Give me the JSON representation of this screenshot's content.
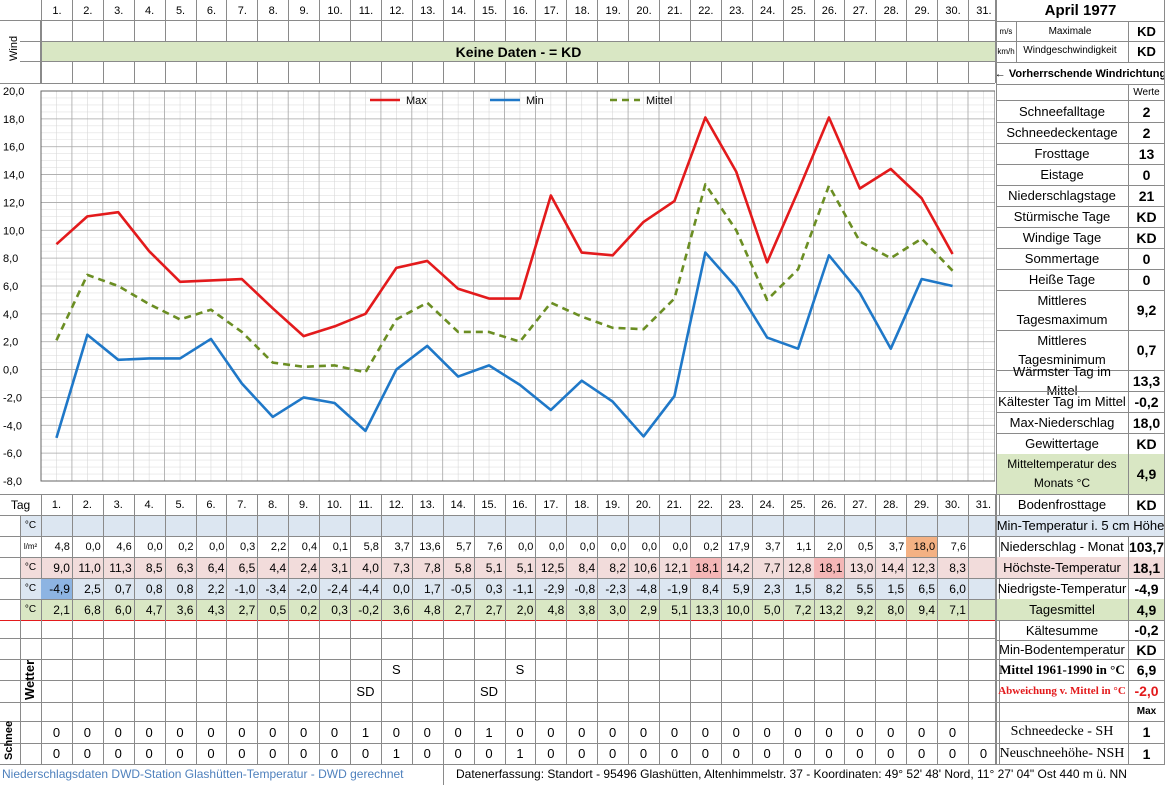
{
  "header": {
    "day_numbers": [
      "1.",
      "2.",
      "3.",
      "4.",
      "5.",
      "6.",
      "7.",
      "8.",
      "9.",
      "10.",
      "11.",
      "12.",
      "13.",
      "14.",
      "15.",
      "16.",
      "17.",
      "18.",
      "19.",
      "20.",
      "21.",
      "22.",
      "23.",
      "24.",
      "25.",
      "26.",
      "27.",
      "28.",
      "29.",
      "30.",
      "31."
    ],
    "month_title": "April 1977",
    "wind_label": "Wind",
    "wind_unit_ms": "m/s",
    "wind_unit_kmh": "km/h",
    "max_wind_label_1": "Maximale",
    "max_wind_label_2": "Windgeschwindigkeit",
    "max_wind_ms": "KD",
    "max_wind_kmh": "KD",
    "no_data_banner": "Keine Daten -  = KD",
    "prevailing_wind": "← Vorherrschende Windrichtung"
  },
  "chart_data": {
    "type": "line",
    "x": [
      1,
      2,
      3,
      4,
      5,
      6,
      7,
      8,
      9,
      10,
      11,
      12,
      13,
      14,
      15,
      16,
      17,
      18,
      19,
      20,
      21,
      22,
      23,
      24,
      25,
      26,
      27,
      28,
      29,
      30
    ],
    "series": [
      {
        "name": "Max",
        "color": "#e31a1c",
        "style": "solid",
        "values": [
          9.0,
          11.0,
          11.3,
          8.5,
          6.3,
          6.4,
          6.5,
          4.4,
          2.4,
          3.1,
          4.0,
          7.3,
          7.8,
          5.8,
          5.1,
          5.1,
          12.5,
          8.4,
          8.2,
          10.6,
          12.1,
          18.1,
          14.2,
          7.7,
          12.8,
          18.1,
          13.0,
          14.4,
          12.3,
          8.3
        ]
      },
      {
        "name": "Min",
        "color": "#1f78c8",
        "style": "solid",
        "values": [
          -4.9,
          2.5,
          0.7,
          0.8,
          0.8,
          2.2,
          -1.0,
          -3.4,
          -2.0,
          -2.4,
          -4.4,
          0.0,
          1.7,
          -0.5,
          0.3,
          -1.1,
          -2.9,
          -0.8,
          -2.3,
          -4.8,
          -1.9,
          8.4,
          5.9,
          2.3,
          1.5,
          8.2,
          5.5,
          1.5,
          6.5,
          6.0
        ]
      },
      {
        "name": "Mittel",
        "color": "#6b8e23",
        "style": "dashed",
        "values": [
          2.1,
          6.8,
          6.0,
          4.7,
          3.6,
          4.3,
          2.7,
          0.5,
          0.2,
          0.3,
          -0.2,
          3.6,
          4.8,
          2.7,
          2.7,
          2.0,
          4.8,
          3.8,
          3.0,
          2.9,
          5.1,
          13.3,
          10.0,
          5.0,
          7.2,
          13.2,
          9.2,
          8.0,
          9.4,
          7.1
        ]
      }
    ],
    "y_ticks": [
      "20,0",
      "18,0",
      "16,0",
      "14,0",
      "12,0",
      "10,0",
      "8,0",
      "6,0",
      "4,0",
      "2,0",
      "0,0",
      "-2,0",
      "-4,0",
      "-6,0",
      "-8,0"
    ],
    "ylim": [
      -8,
      20
    ],
    "legend_placement": "top-center",
    "grid": true
  },
  "table": {
    "tag_label": "Tag",
    "units": {
      "boden": "°C",
      "nieder": "l/m²",
      "max": "°C",
      "min": "°C",
      "mittel": "°C"
    },
    "nieder": [
      "4,8",
      "0,0",
      "4,6",
      "0,0",
      "0,2",
      "0,0",
      "0,3",
      "2,2",
      "0,4",
      "0,1",
      "5,8",
      "3,7",
      "13,6",
      "5,7",
      "7,6",
      "0,0",
      "0,0",
      "0,0",
      "0,0",
      "0,0",
      "0,0",
      "0,2",
      "17,9",
      "3,7",
      "1,1",
      "2,0",
      "0,5",
      "3,7",
      "18,0",
      "7,6"
    ],
    "max": [
      "9,0",
      "11,0",
      "11,3",
      "8,5",
      "6,3",
      "6,4",
      "6,5",
      "4,4",
      "2,4",
      "3,1",
      "4,0",
      "7,3",
      "7,8",
      "5,8",
      "5,1",
      "5,1",
      "12,5",
      "8,4",
      "8,2",
      "10,6",
      "12,1",
      "18,1",
      "14,2",
      "7,7",
      "12,8",
      "18,1",
      "13,0",
      "14,4",
      "12,3",
      "8,3"
    ],
    "min": [
      "-4,9",
      "2,5",
      "0,7",
      "0,8",
      "0,8",
      "2,2",
      "-1,0",
      "-3,4",
      "-2,0",
      "-2,4",
      "-4,4",
      "0,0",
      "1,7",
      "-0,5",
      "0,3",
      "-1,1",
      "-2,9",
      "-0,8",
      "-2,3",
      "-4,8",
      "-1,9",
      "8,4",
      "5,9",
      "2,3",
      "1,5",
      "8,2",
      "5,5",
      "1,5",
      "6,5",
      "6,0"
    ],
    "mittel": [
      "2,1",
      "6,8",
      "6,0",
      "4,7",
      "3,6",
      "4,3",
      "2,7",
      "0,5",
      "0,2",
      "0,3",
      "-0,2",
      "3,6",
      "4,8",
      "2,7",
      "2,7",
      "2,0",
      "4,8",
      "3,8",
      "3,0",
      "2,9",
      "5,1",
      "13,3",
      "10,0",
      "5,0",
      "7,2",
      "13,2",
      "9,2",
      "8,0",
      "9,4",
      "7,1"
    ],
    "wetter_label": "Wetter",
    "wetter_row1": [
      "",
      "",
      "",
      "",
      "",
      "",
      "",
      "",
      "",
      "",
      "",
      "S",
      "",
      "",
      "",
      "S",
      "",
      "",
      "",
      "",
      "",
      "",
      "",
      "",
      "",
      "",
      "",
      "",
      "",
      ""
    ],
    "wetter_row2": [
      "",
      "",
      "",
      "",
      "",
      "",
      "",
      "",
      "",
      "",
      "SD",
      "",
      "",
      "",
      "SD",
      "",
      "",
      "",
      "",
      "",
      "",
      "",
      "",
      "",
      "",
      "",
      "",
      "",
      "",
      ""
    ],
    "schnee_label": "Schnee",
    "schnee_sh": [
      "0",
      "0",
      "0",
      "0",
      "0",
      "0",
      "0",
      "0",
      "0",
      "0",
      "1",
      "0",
      "0",
      "0",
      "1",
      "0",
      "0",
      "0",
      "0",
      "0",
      "0",
      "0",
      "0",
      "0",
      "0",
      "0",
      "0",
      "0",
      "0",
      "0"
    ],
    "schnee_nsh": [
      "0",
      "0",
      "0",
      "0",
      "0",
      "0",
      "0",
      "0",
      "0",
      "0",
      "0",
      "1",
      "0",
      "0",
      "0",
      "1",
      "0",
      "0",
      "0",
      "0",
      "0",
      "0",
      "0",
      "0",
      "0",
      "0",
      "0",
      "0",
      "0",
      "0"
    ],
    "schnee_nsh_31": "0"
  },
  "stats": {
    "werte_label": "Werte",
    "max_label": "Max",
    "upper": [
      {
        "label": "Schneefalltage",
        "value": "2"
      },
      {
        "label": "Schneedeckentage",
        "value": "2"
      },
      {
        "label": "Frosttage",
        "value": "13"
      },
      {
        "label": "Eistage",
        "value": "0"
      },
      {
        "label": "Niederschlagstage",
        "value": "21"
      },
      {
        "label": "Stürmische Tage",
        "value": "KD"
      },
      {
        "label": "Windige Tage",
        "value": "KD"
      },
      {
        "label": "Sommertage",
        "value": "0"
      },
      {
        "label": "Heiße Tage",
        "value": "0"
      },
      {
        "label": "Mittleres\nTagesmaximum",
        "value": "9,2"
      },
      {
        "label": "Mittleres\nTagesminimum",
        "value": "0,7"
      },
      {
        "label": "Wärmster Tag im Mittel",
        "value": "13,3"
      },
      {
        "label": "Kältester Tag im Mittel",
        "value": "-0,2"
      },
      {
        "label": "Max-Niederschlag",
        "value": "18,0"
      },
      {
        "label": "Gewittertage",
        "value": "KD"
      },
      {
        "label": "Mitteltemperatur des\nMonats °C",
        "value": "4,9"
      }
    ],
    "bodenfrost_label": "Bodenfrosttage",
    "bodenfrost_value": "KD",
    "min_temp_5cm": "Min-Temperatur i. 5 cm Höhe",
    "lower": [
      {
        "label": "Niederschlag - Monat",
        "value": "103,7"
      },
      {
        "label": "Höchste-Temperatur",
        "value": "18,1"
      },
      {
        "label": "Niedrigste-Temperatur",
        "value": "-4,9"
      },
      {
        "label": "Tagesmittel",
        "value": "4,9"
      },
      {
        "label": "Kältesumme",
        "value": "-0,2"
      },
      {
        "label": "Min-Bodentemperatur",
        "value": "KD"
      },
      {
        "label": "Mittel 1961-1990 in °C",
        "value": "6,9"
      },
      {
        "label": "Abweichung v. Mittel in °C",
        "value": "-2,0"
      }
    ],
    "schneedecke_label": "Schneedecke -  SH",
    "schneedecke_value": "1",
    "neuschnee_label": "Neuschneehöhe- NSH",
    "neuschnee_value": "1"
  },
  "footer": {
    "left": "Niederschlagsdaten DWD-Station Glashütten-Temperatur -  DWD gerechnet",
    "right": "Datenerfassung: Standort -  95496 Glashütten, Altenhimmelstr. 37 - Koordinaten: 49° 52' 48' Nord,  11° 27' 04\" Ost  440 m ü. NN"
  }
}
